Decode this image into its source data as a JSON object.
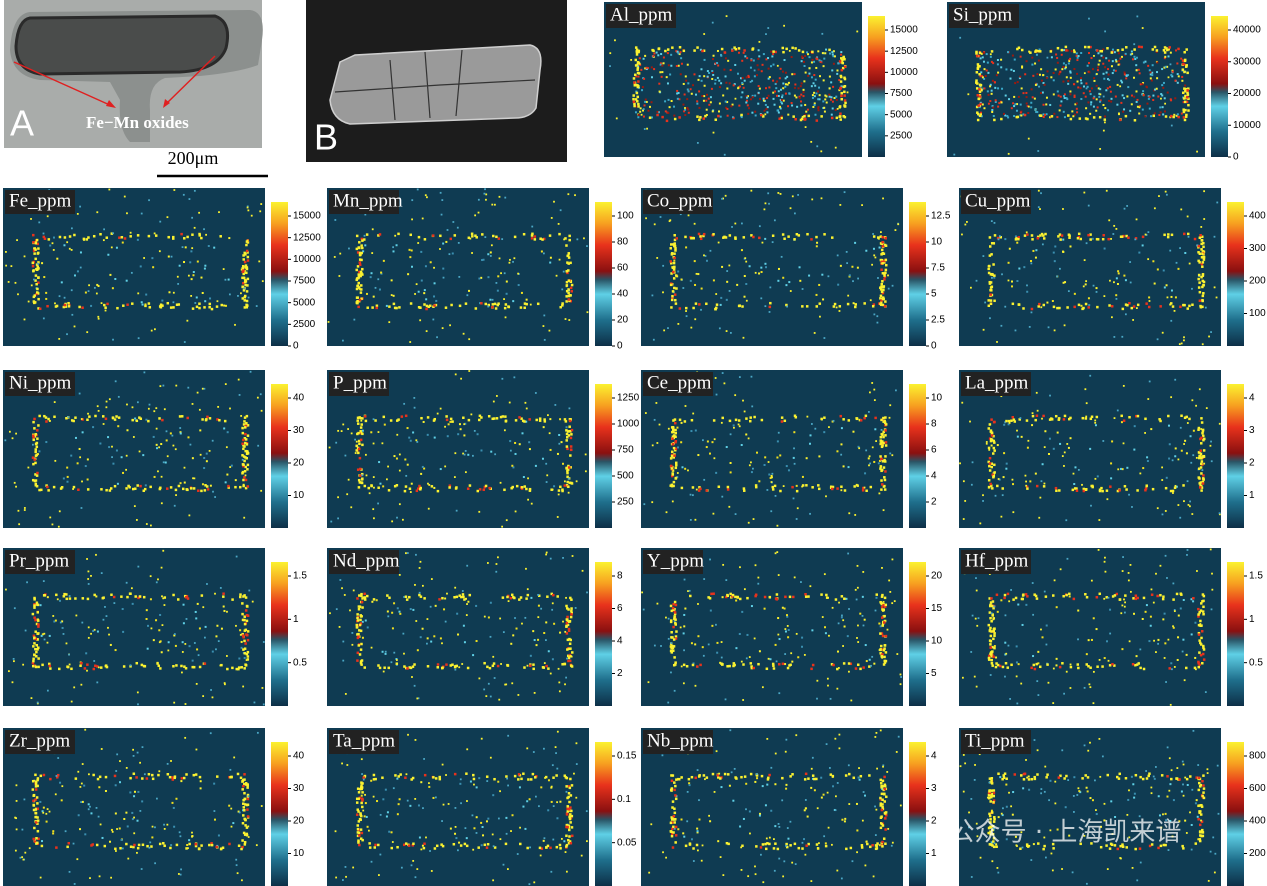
{
  "panels": {
    "a": {
      "letter": "A",
      "annotation": "Fe−Mn oxides",
      "scale_bar": "200μm"
    },
    "b": {
      "letter": "B"
    }
  },
  "maps": [
    {
      "label": "Al_ppm",
      "ticks": [
        2500,
        5000,
        7500,
        10000,
        12500,
        15000
      ]
    },
    {
      "label": "Si_ppm",
      "ticks": [
        0,
        10000,
        20000,
        30000,
        40000
      ]
    },
    {
      "label": "Fe_ppm",
      "ticks": [
        0,
        2500,
        5000,
        7500,
        10000,
        12500,
        15000
      ]
    },
    {
      "label": "Mn_ppm",
      "ticks": [
        0,
        20,
        40,
        60,
        80,
        100
      ]
    },
    {
      "label": "Co_ppm",
      "ticks": [
        0,
        2.5,
        5,
        7.5,
        10,
        12.5
      ]
    },
    {
      "label": "Cu_ppm",
      "ticks": [
        100,
        200,
        300,
        400
      ]
    },
    {
      "label": "Ni_ppm",
      "ticks": [
        10,
        20,
        30,
        40
      ]
    },
    {
      "label": "P_ppm",
      "ticks": [
        250,
        500,
        750,
        1000,
        1250
      ]
    },
    {
      "label": "Ce_ppm",
      "ticks": [
        2,
        4,
        6,
        8,
        10
      ]
    },
    {
      "label": "La_ppm",
      "ticks": [
        1,
        2,
        3,
        4
      ]
    },
    {
      "label": "Pr_ppm",
      "ticks": [
        0.5,
        1,
        1.5
      ]
    },
    {
      "label": "Nd_ppm",
      "ticks": [
        2,
        4,
        6,
        8
      ]
    },
    {
      "label": "Y_ppm",
      "ticks": [
        5,
        10,
        15,
        20
      ]
    },
    {
      "label": "Hf_ppm",
      "ticks": [
        0.5,
        1,
        1.5
      ]
    },
    {
      "label": "Zr_ppm",
      "ticks": [
        10,
        20,
        30,
        40
      ]
    },
    {
      "label": "Ta_ppm",
      "ticks": [
        0.05,
        0.1,
        0.15
      ]
    },
    {
      "label": "Nb_ppm",
      "ticks": [
        1,
        2,
        3,
        4
      ]
    },
    {
      "label": "Ti_ppm",
      "ticks": [
        200,
        400,
        600,
        800
      ]
    }
  ],
  "watermark": "公众号 · 上海凯来谱"
}
